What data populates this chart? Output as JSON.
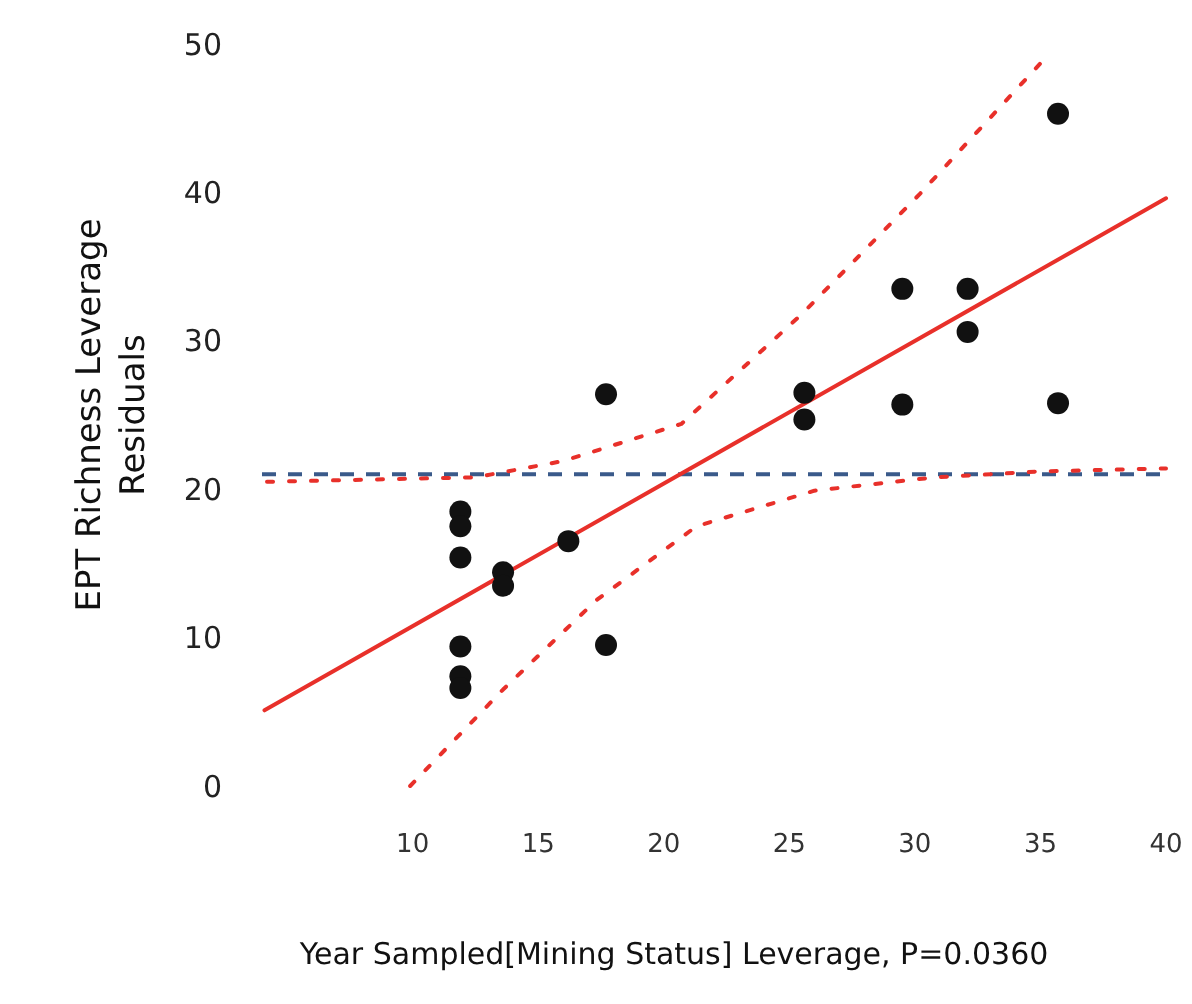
{
  "chart_data": {
    "type": "scatter",
    "xlabel": "Year Sampled[Mining Status] Leverage, P=0.0360",
    "ylabel": "EPT Richness Leverage Residuals",
    "xlim": [
      4,
      40
    ],
    "ylim": [
      0,
      50
    ],
    "xticks": [
      10,
      15,
      20,
      25,
      30,
      35,
      40
    ],
    "yticks": [
      0,
      10,
      20,
      30,
      40,
      50
    ],
    "grid": false,
    "series": [
      {
        "color": "#111111",
        "marker": "circle",
        "x": [
          11.9,
          11.9,
          11.9,
          11.9,
          11.9,
          11.9,
          13.6,
          13.6,
          16.2,
          17.7,
          17.7,
          25.6,
          25.6,
          29.5,
          29.5,
          32.1,
          32.1,
          35.7,
          35.7
        ],
        "values": [
          18.5,
          17.5,
          15.4,
          9.4,
          7.4,
          6.6,
          14.4,
          13.5,
          16.5,
          26.4,
          9.5,
          26.5,
          24.7,
          33.5,
          25.7,
          33.5,
          30.6,
          45.3,
          25.8
        ]
      },
      {
        "type": "line",
        "color": "#e8302a",
        "line_style": "solid",
        "x": [
          4.1,
          40
        ],
        "values": [
          5.1,
          39.6
        ]
      },
      {
        "type": "line",
        "color": "#e8302a",
        "line_style": "dotted",
        "x": [
          4.2,
          12.5,
          16,
          20.7,
          25.5,
          30.2,
          35
        ],
        "values": [
          20.5,
          20.8,
          21.9,
          24.4,
          31.8,
          39.9,
          48.7
        ]
      },
      {
        "type": "line",
        "color": "#e8302a",
        "line_style": "dotted",
        "x": [
          9.9,
          13.6,
          17.3,
          21.3,
          26,
          30.8,
          35,
          40
        ],
        "values": [
          0,
          6.5,
          12.5,
          17.5,
          19.9,
          20.8,
          21.2,
          21.4
        ]
      }
    ],
    "ref_lines": [
      {
        "axis": "y",
        "value": 21,
        "color": "#3a5a8a",
        "line_style": "dashed"
      }
    ]
  }
}
